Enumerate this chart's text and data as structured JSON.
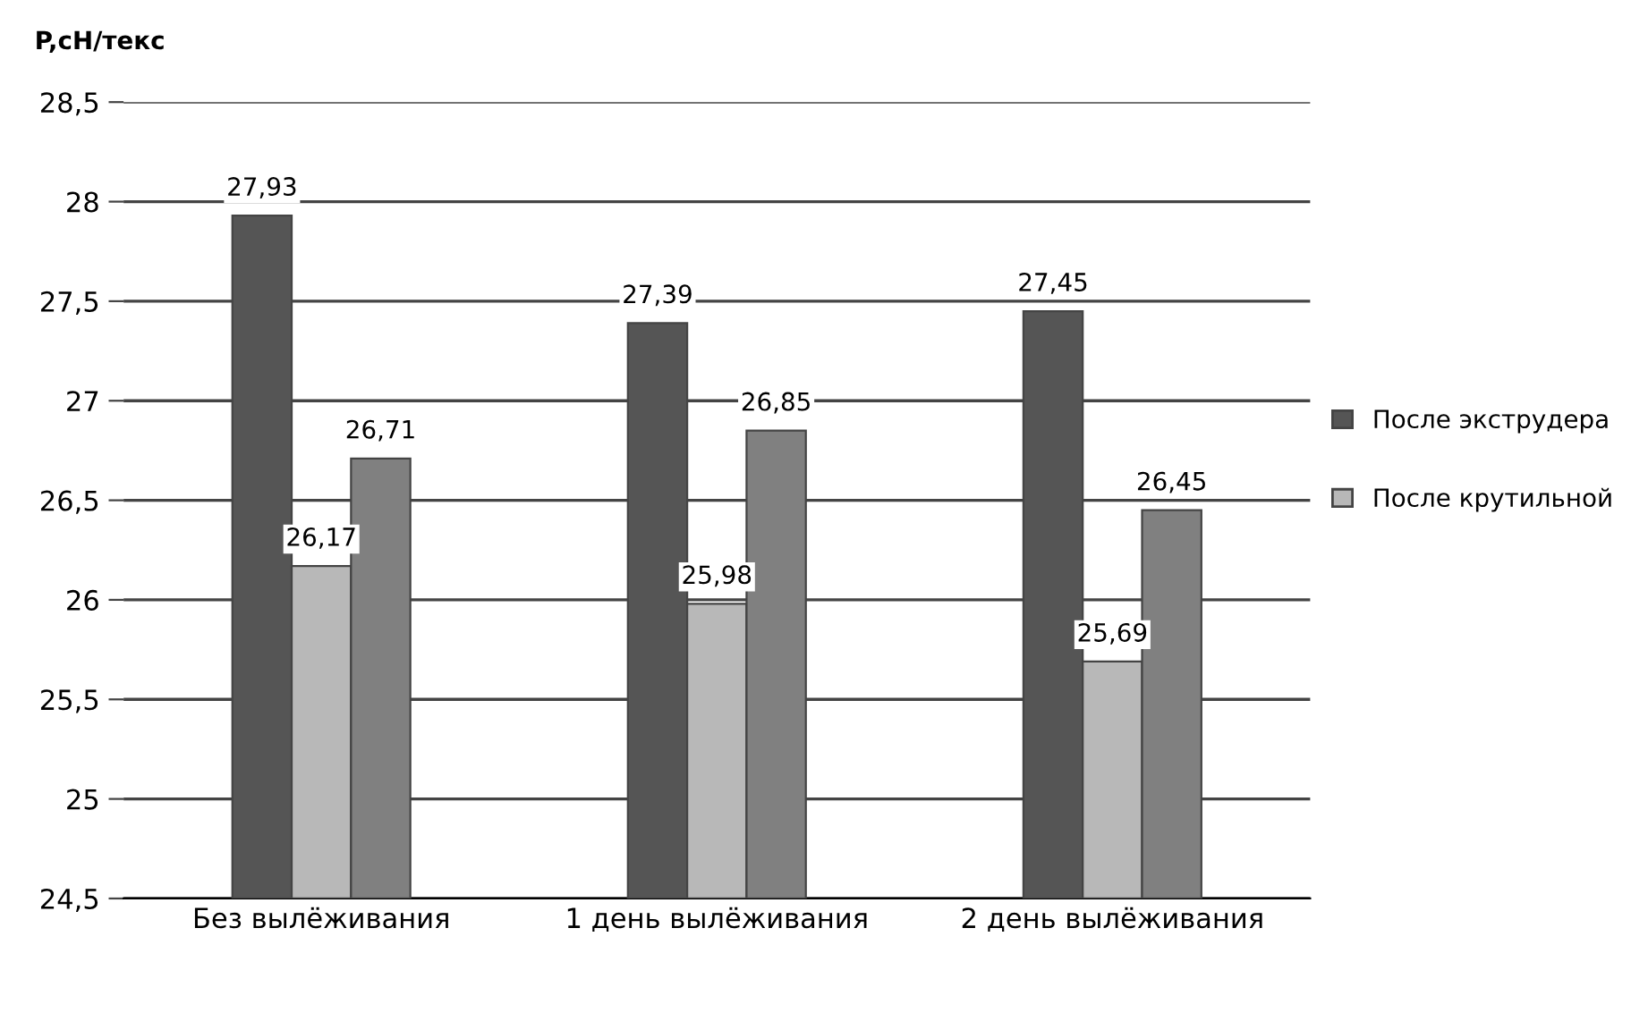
{
  "chart_data": {
    "type": "bar",
    "ylabel": "P,сН/текс",
    "categories": [
      "Без вылёживания",
      "1 день вылёживания",
      "2 день вылёживания"
    ],
    "series": [
      {
        "name": "После экструдера",
        "color": "#555555",
        "values": [
          27.93,
          27.39,
          27.45
        ]
      },
      {
        "name": "После крутильной",
        "color": "#b8b8b8",
        "values": [
          26.17,
          25.98,
          25.69
        ]
      },
      {
        "color": "#808080",
        "values": [
          26.71,
          26.85,
          26.45
        ]
      }
    ],
    "ylim": [
      24.5,
      28.5
    ],
    "yticks": [
      {
        "value": 24.5,
        "label": "24,5"
      },
      {
        "value": 25,
        "label": "25"
      },
      {
        "value": 25.5,
        "label": "25,5"
      },
      {
        "value": 26,
        "label": "26"
      },
      {
        "value": 26.5,
        "label": "26,5"
      },
      {
        "value": 27,
        "label": "27"
      },
      {
        "value": 27.5,
        "label": "27,5"
      },
      {
        "value": 28,
        "label": "28"
      },
      {
        "value": 28.5,
        "label": "28,5"
      }
    ],
    "value_labels": [
      [
        "27,93",
        "27,39",
        "27,45"
      ],
      [
        "26,17",
        "25,98",
        "25,69"
      ],
      [
        "26,71",
        "26,85",
        "26,45"
      ]
    ],
    "grid": "y",
    "legend": "right"
  }
}
